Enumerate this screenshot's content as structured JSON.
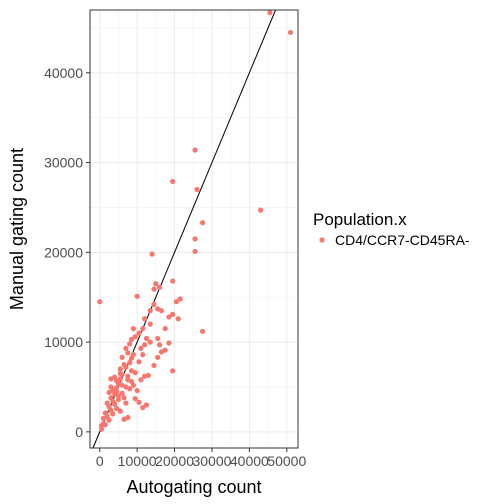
{
  "chart_data": {
    "type": "scatter",
    "xlabel": "Autogating count",
    "ylabel": "Manual gating count",
    "xlim": [
      -2600,
      53000
    ],
    "ylim": [
      -1800,
      47000
    ],
    "x_ticks": [
      0,
      10000,
      20000,
      30000,
      40000,
      50000
    ],
    "x_tick_labels": [
      "0",
      "10000",
      "20000",
      "30000",
      "40000",
      "50000"
    ],
    "y_ticks": [
      0,
      10000,
      20000,
      30000,
      40000
    ],
    "y_tick_labels": [
      "0",
      "10000",
      "20000",
      "30000",
      "40000"
    ],
    "grid": true,
    "background": "#ffffff",
    "grid_color": "#ebebeb",
    "panel_border_color": "#333333",
    "point_color": "#f8766d",
    "legend": {
      "title": "Population.x",
      "position": "right",
      "entries": [
        {
          "label": "CD4/CCR7-CD45RA-",
          "color": "#f8766d"
        }
      ]
    },
    "reference_line": {
      "description": "y = x diagonal",
      "slope": 1,
      "intercept": 0,
      "color": "#000000"
    },
    "series": [
      {
        "color": "#f8766d",
        "points": [
          [
            0,
            14500
          ],
          [
            43000,
            24700
          ],
          [
            45500,
            46700
          ],
          [
            51000,
            44500
          ],
          [
            25500,
            31400
          ],
          [
            26000,
            27000
          ],
          [
            19500,
            27900
          ],
          [
            27500,
            23300
          ],
          [
            25500,
            21500
          ],
          [
            25500,
            20100
          ],
          [
            14000,
            19800
          ],
          [
            27500,
            11200
          ],
          [
            19500,
            16800
          ],
          [
            19500,
            6800
          ],
          [
            20500,
            14500
          ],
          [
            21500,
            14800
          ],
          [
            10000,
            15100
          ],
          [
            14500,
            15900
          ],
          [
            15000,
            16500
          ],
          [
            16000,
            16100
          ],
          [
            13500,
            13500
          ],
          [
            14500,
            14200
          ],
          [
            15500,
            13700
          ],
          [
            16500,
            13500
          ],
          [
            18500,
            12800
          ],
          [
            19500,
            13100
          ],
          [
            21000,
            12600
          ],
          [
            17500,
            11500
          ],
          [
            12000,
            12600
          ],
          [
            13500,
            12000
          ],
          [
            11500,
            11500
          ],
          [
            10500,
            11000
          ],
          [
            9500,
            10600
          ],
          [
            8000,
            9800
          ],
          [
            8500,
            10300
          ],
          [
            9000,
            11500
          ],
          [
            12500,
            10400
          ],
          [
            13500,
            10000
          ],
          [
            11000,
            9300
          ],
          [
            12000,
            9700
          ],
          [
            15500,
            10400
          ],
          [
            16000,
            9700
          ],
          [
            17500,
            9100
          ],
          [
            18500,
            9900
          ],
          [
            7000,
            9300
          ],
          [
            7500,
            8800
          ],
          [
            8500,
            8200
          ],
          [
            9000,
            8600
          ],
          [
            6000,
            8300
          ],
          [
            6500,
            7500
          ],
          [
            7000,
            7200
          ],
          [
            8000,
            7700
          ],
          [
            5500,
            7000
          ],
          [
            6000,
            6400
          ],
          [
            7500,
            6200
          ],
          [
            8500,
            6800
          ],
          [
            4000,
            6100
          ],
          [
            4500,
            5700
          ],
          [
            5000,
            5400
          ],
          [
            5500,
            5900
          ],
          [
            3000,
            5000
          ],
          [
            3500,
            4600
          ],
          [
            4000,
            4200
          ],
          [
            4500,
            4900
          ],
          [
            3000,
            3800
          ],
          [
            3500,
            3400
          ],
          [
            4000,
            3100
          ],
          [
            5000,
            3600
          ],
          [
            2000,
            3200
          ],
          [
            2500,
            2800
          ],
          [
            3000,
            2400
          ],
          [
            3500,
            2000
          ],
          [
            1500,
            2100
          ],
          [
            2000,
            1700
          ],
          [
            2500,
            1300
          ],
          [
            1000,
            1500
          ],
          [
            1000,
            900
          ],
          [
            1500,
            800
          ],
          [
            500,
            700
          ],
          [
            500,
            300
          ],
          [
            6000,
            4300
          ],
          [
            6500,
            3800
          ],
          [
            7000,
            3200
          ],
          [
            8000,
            4800
          ],
          [
            9000,
            5200
          ],
          [
            10000,
            4600
          ],
          [
            11000,
            5800
          ],
          [
            12000,
            6200
          ],
          [
            9500,
            3700
          ],
          [
            10500,
            3300
          ],
          [
            11500,
            2700
          ],
          [
            12500,
            3000
          ],
          [
            13000,
            6300
          ],
          [
            14500,
            7400
          ],
          [
            15500,
            8300
          ],
          [
            16500,
            8900
          ],
          [
            7500,
            1600
          ],
          [
            6500,
            1400
          ],
          [
            5500,
            2300
          ],
          [
            4500,
            2600
          ],
          [
            8500,
            5600
          ],
          [
            9500,
            6600
          ],
          [
            10500,
            7800
          ],
          [
            11500,
            8600
          ],
          [
            3000,
            5900
          ],
          [
            2500,
            4400
          ],
          [
            4500,
            4500
          ],
          [
            5000,
            4000
          ],
          [
            6000,
            5200
          ],
          [
            7000,
            5000
          ],
          [
            7500,
            5800
          ],
          [
            5500,
            6500
          ]
        ]
      }
    ]
  }
}
